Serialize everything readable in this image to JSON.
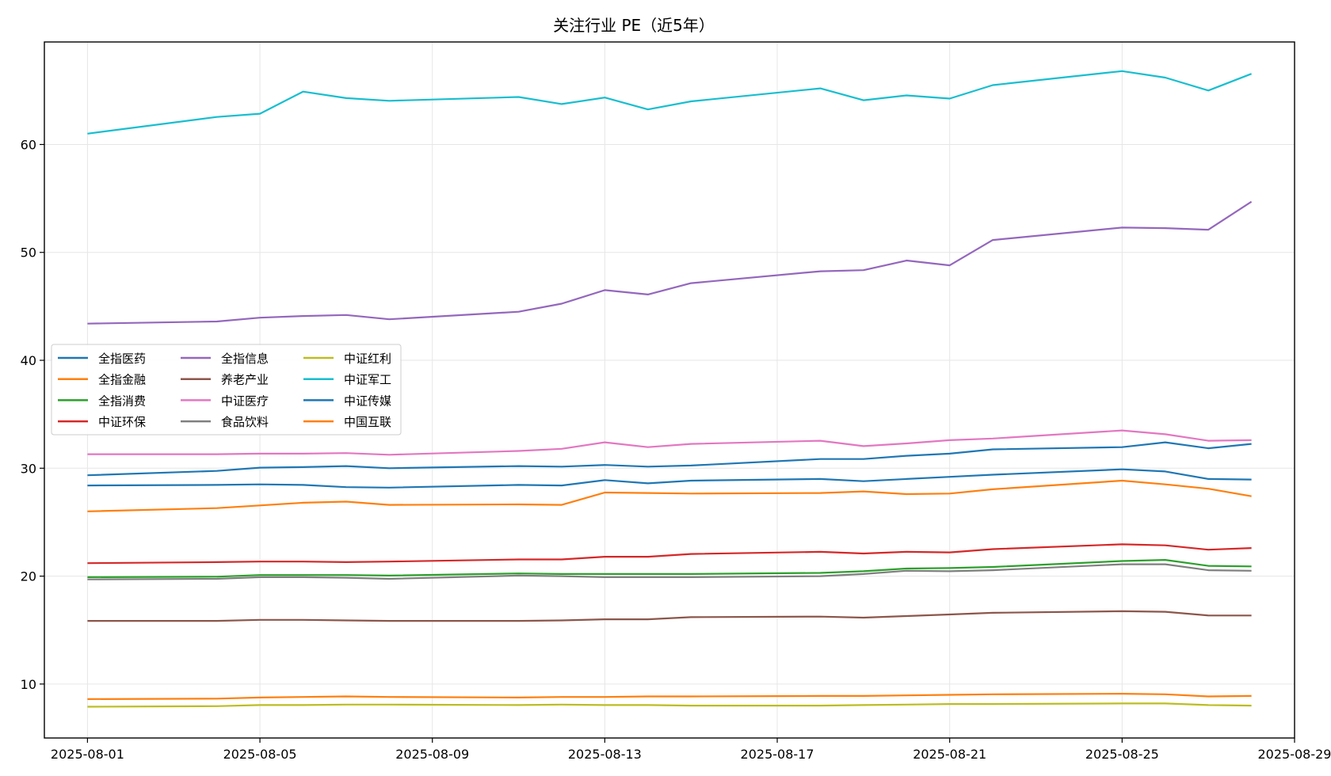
{
  "chart_data": {
    "type": "line",
    "title": "关注行业 PE（近5年）",
    "xlabel": "",
    "ylabel": "",
    "grid": true,
    "legend_position": "center-left",
    "legend_columns": 3,
    "x_ticks": [
      "2025-08-01",
      "2025-08-05",
      "2025-08-09",
      "2025-08-13",
      "2025-08-17",
      "2025-08-21",
      "2025-08-25",
      "2025-08-29"
    ],
    "y_ticks": [
      10,
      20,
      30,
      40,
      50,
      60
    ],
    "xlim": [
      "2025-07-31",
      "2025-08-29"
    ],
    "ylim": [
      5,
      69.5
    ],
    "x": [
      "2025-08-01",
      "2025-08-04",
      "2025-08-05",
      "2025-08-06",
      "2025-08-07",
      "2025-08-08",
      "2025-08-11",
      "2025-08-12",
      "2025-08-13",
      "2025-08-14",
      "2025-08-15",
      "2025-08-18",
      "2025-08-19",
      "2025-08-20",
      "2025-08-21",
      "2025-08-22",
      "2025-08-25",
      "2025-08-26",
      "2025-08-27",
      "2025-08-28"
    ],
    "series": [
      {
        "name": "全指医药",
        "color": "#1f77b4",
        "values": [
          28.4,
          28.45,
          28.5,
          28.45,
          28.25,
          28.2,
          28.45,
          28.4,
          28.9,
          28.6,
          28.85,
          29.0,
          28.8,
          29.0,
          29.2,
          29.4,
          29.9,
          29.7,
          29.0,
          28.95
        ]
      },
      {
        "name": "全指金融",
        "color": "#ff7f0e",
        "values": [
          26.0,
          26.3,
          26.55,
          26.8,
          26.9,
          26.6,
          26.65,
          26.6,
          27.75,
          27.7,
          27.65,
          27.7,
          27.85,
          27.6,
          27.65,
          28.05,
          28.85,
          28.5,
          28.1,
          27.4
        ]
      },
      {
        "name": "全指消费",
        "color": "#2ca02c",
        "values": [
          19.9,
          19.95,
          20.1,
          20.1,
          20.1,
          20.05,
          20.25,
          20.2,
          20.2,
          20.2,
          20.2,
          20.3,
          20.45,
          20.7,
          20.75,
          20.85,
          21.4,
          21.5,
          20.95,
          20.9
        ]
      },
      {
        "name": "中证环保",
        "color": "#d62728",
        "values": [
          21.2,
          21.3,
          21.35,
          21.35,
          21.3,
          21.35,
          21.55,
          21.55,
          21.8,
          21.8,
          22.05,
          22.25,
          22.1,
          22.25,
          22.2,
          22.5,
          22.95,
          22.85,
          22.45,
          22.6
        ]
      },
      {
        "name": "全指信息",
        "color": "#9467bd",
        "values": [
          43.4,
          43.6,
          43.95,
          44.1,
          44.2,
          43.8,
          44.5,
          45.25,
          46.5,
          46.1,
          47.15,
          48.25,
          48.35,
          49.25,
          48.8,
          51.15,
          52.3,
          52.25,
          52.1,
          54.7
        ]
      },
      {
        "name": "养老产业",
        "color": "#8c564b",
        "values": [
          15.85,
          15.85,
          15.95,
          15.95,
          15.9,
          15.85,
          15.85,
          15.9,
          16.0,
          16.0,
          16.2,
          16.25,
          16.15,
          16.3,
          16.45,
          16.6,
          16.75,
          16.7,
          16.35,
          16.35
        ]
      },
      {
        "name": "中证医疗",
        "color": "#e377c2",
        "values": [
          31.3,
          31.3,
          31.35,
          31.35,
          31.4,
          31.25,
          31.6,
          31.8,
          32.4,
          31.95,
          32.25,
          32.55,
          32.05,
          32.3,
          32.6,
          32.75,
          33.5,
          33.15,
          32.55,
          32.6
        ]
      },
      {
        "name": "食品饮料",
        "color": "#7f7f7f",
        "values": [
          19.7,
          19.75,
          19.9,
          19.9,
          19.85,
          19.75,
          20.05,
          20.0,
          19.9,
          19.9,
          19.9,
          20.0,
          20.2,
          20.5,
          20.45,
          20.55,
          21.1,
          21.1,
          20.55,
          20.5
        ]
      },
      {
        "name": "中证红利",
        "color": "#bcbd22",
        "values": [
          7.9,
          7.95,
          8.05,
          8.05,
          8.1,
          8.1,
          8.05,
          8.1,
          8.05,
          8.05,
          8.0,
          8.0,
          8.05,
          8.1,
          8.15,
          8.15,
          8.2,
          8.2,
          8.05,
          8.0
        ]
      },
      {
        "name": "中证军工",
        "color": "#17becf",
        "values": [
          61.0,
          62.55,
          62.85,
          64.9,
          64.3,
          64.05,
          64.4,
          63.75,
          64.35,
          63.25,
          64.0,
          65.2,
          64.1,
          64.55,
          64.25,
          65.5,
          66.8,
          66.2,
          65.0,
          66.55
        ]
      },
      {
        "name": "中证传媒",
        "color": "#1f77b4",
        "values": [
          29.35,
          29.75,
          30.05,
          30.1,
          30.2,
          30.0,
          30.2,
          30.15,
          30.3,
          30.15,
          30.25,
          30.85,
          30.85,
          31.15,
          31.35,
          31.75,
          31.95,
          32.4,
          31.85,
          32.25
        ]
      },
      {
        "name": "中国互联",
        "color": "#ff7f0e",
        "values": [
          8.6,
          8.65,
          8.75,
          8.8,
          8.85,
          8.8,
          8.75,
          8.8,
          8.8,
          8.85,
          8.85,
          8.9,
          8.9,
          8.95,
          9.0,
          9.05,
          9.1,
          9.05,
          8.85,
          8.9
        ]
      }
    ]
  }
}
